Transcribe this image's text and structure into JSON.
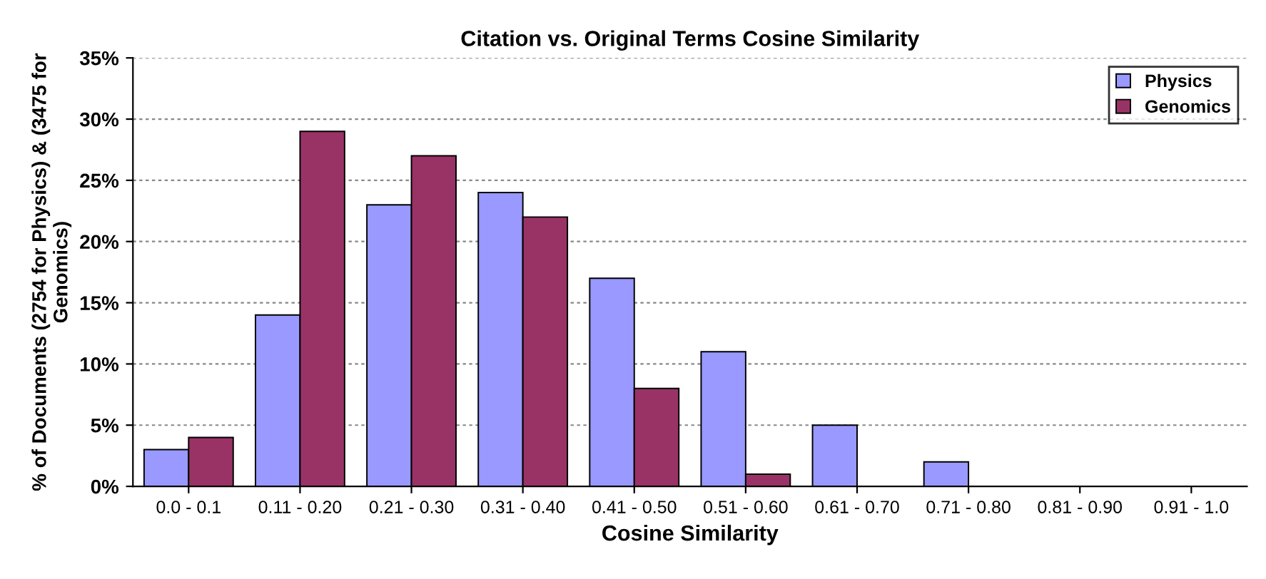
{
  "chart_data": {
    "type": "bar",
    "title": "Citation vs. Original Terms Cosine Similarity",
    "xlabel": "Cosine Similarity",
    "ylabel": "% of Documents (2754 for Physics) & (3475 for Genomics)",
    "categories": [
      "0.0 - 0.1",
      "0.11 - 0.20",
      "0.21 - 0.30",
      "0.31 - 0.40",
      "0.41 - 0.50",
      "0.51 - 0.60",
      "0.61 - 0.70",
      "0.71 - 0.80",
      "0.81 - 0.90",
      "0.91 - 1.0"
    ],
    "series": [
      {
        "name": "Physics",
        "color": "#9999ff",
        "values": [
          3,
          14,
          23,
          24,
          17,
          11,
          5,
          2,
          0,
          0
        ]
      },
      {
        "name": "Genomics",
        "color": "#993366",
        "values": [
          4,
          29,
          27,
          22,
          8,
          1,
          0,
          0,
          0,
          0
        ]
      }
    ],
    "ylim": [
      0,
      35
    ],
    "yticks": [
      {
        "value": 0,
        "label": "0%"
      },
      {
        "value": 5,
        "label": "5%"
      },
      {
        "value": 10,
        "label": "10%"
      },
      {
        "value": 15,
        "label": "15%"
      },
      {
        "value": 20,
        "label": "20%"
      },
      {
        "value": 25,
        "label": "25%"
      },
      {
        "value": 30,
        "label": "30%"
      },
      {
        "value": 35,
        "label": "35%"
      }
    ],
    "grid": "y",
    "legend": "top right"
  }
}
